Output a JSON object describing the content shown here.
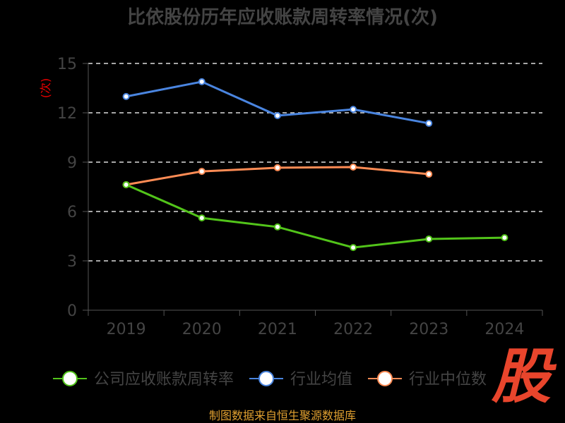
{
  "chart_data": {
    "type": "line",
    "title": "比依股份历年应收账款周转率情况(次)",
    "ylabel": "(次)",
    "xlabel": "",
    "categories": [
      "2019",
      "2020",
      "2021",
      "2022",
      "2023",
      "2024"
    ],
    "ylim": [
      0,
      15
    ],
    "yticks": [
      "0",
      "3",
      "6",
      "9",
      "12",
      "15"
    ],
    "grid": true,
    "legend_position": "bottom",
    "series": [
      {
        "name": "公司应收账款周转率",
        "color": "#52c41a",
        "values": [
          7.63,
          5.61,
          5.06,
          3.81,
          4.33,
          4.41
        ]
      },
      {
        "name": "行业均值",
        "color": "#4a85e0",
        "values": [
          12.99,
          13.89,
          11.83,
          12.21,
          11.36,
          null
        ]
      },
      {
        "name": "行业中位数",
        "color": "#ff8c55",
        "values": [
          7.63,
          8.44,
          8.66,
          8.7,
          8.27,
          null
        ]
      }
    ]
  },
  "footer": {
    "source": "制图数据来自恒生聚源数据库",
    "logo": "股"
  }
}
